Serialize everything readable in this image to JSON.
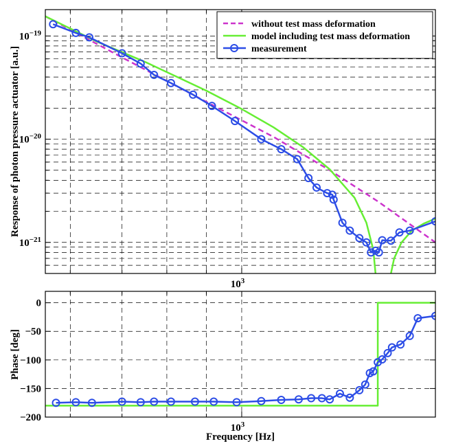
{
  "chart_data": [
    {
      "type": "line",
      "panel": "magnitude",
      "xscale": "log",
      "yscale": "log",
      "xlim": [
        557,
        1781
      ],
      "ylim": [
        5e-22,
        1.8e-19
      ],
      "ylabel": "Response of photon pressure actuator [a.u.]",
      "xlabel": "",
      "x_tick_labels": [
        {
          "value": 1000,
          "label": "10",
          "exp": "3"
        }
      ],
      "y_tick_labels": [
        {
          "value": 1e-19,
          "label": "10",
          "exp": "−19"
        },
        {
          "value": 1e-20,
          "label": "10",
          "exp": "−20"
        },
        {
          "value": 1e-21,
          "label": "10",
          "exp": "−21"
        }
      ],
      "grid": true,
      "legend": "top-right",
      "series": [
        {
          "name": "without test mass deformation",
          "color": "#cc33cc",
          "style": "dashed",
          "x": [
            557,
            700,
            900,
            1100,
            1300,
            1500,
            1781
          ],
          "y": [
            1.55e-19,
            6.2e-20,
            2.3e-20,
            1.05e-20,
            5e-21,
            2.5e-21,
            1e-21
          ]
        },
        {
          "name": "model including test mass deformation",
          "color": "#66ee33",
          "style": "solid",
          "x": [
            557,
            650,
            750,
            900,
            1000,
            1100,
            1200,
            1300,
            1400,
            1450,
            1480,
            1490
          ],
          "y": [
            1.55e-19,
            8.8e-20,
            5.6e-20,
            2.95e-20,
            1.96e-20,
            1.3e-20,
            8.4e-21,
            5.1e-21,
            2.7e-21,
            1.55e-21,
            8.5e-22,
            5e-22
          ]
        },
        {
          "name": "model including test mass deformation",
          "color": "#66ee33",
          "style": "solid",
          "x": [
            1560,
            1575,
            1610,
            1660,
            1720,
            1781
          ],
          "y": [
            5e-22,
            7e-22,
            1e-21,
            1.3e-21,
            1.52e-21,
            1.7e-21
          ]
        },
        {
          "name": "measurement",
          "color": "#2c4de6",
          "style": "solid-circles",
          "x": [
            570,
            610,
            635,
            700,
            740,
            770,
            810,
            865,
            915,
            980,
            1060,
            1125,
            1180,
            1220,
            1250,
            1290,
            1310,
            1315,
            1350,
            1380,
            1420,
            1450,
            1470,
            1490,
            1505,
            1520,
            1560,
            1600,
            1650,
            1781
          ],
          "y": [
            1.3e-19,
            1.07e-19,
            9.7e-20,
            6.8e-20,
            5.4e-20,
            4.2e-20,
            3.5e-20,
            2.7e-20,
            2.1e-20,
            1.5e-20,
            1e-20,
            8e-21,
            6.4e-21,
            4.2e-21,
            3.4e-21,
            3e-21,
            2.9e-21,
            2.6e-21,
            1.55e-21,
            1.3e-21,
            1.1e-21,
            1e-21,
            8e-22,
            8.3e-22,
            8e-22,
            1.05e-21,
            1.04e-21,
            1.25e-21,
            1.3e-21,
            1.6e-21
          ]
        }
      ]
    },
    {
      "type": "line",
      "panel": "phase",
      "xscale": "log",
      "xlim": [
        557,
        1781
      ],
      "ylim": [
        -200,
        20
      ],
      "xlabel": "Frequency [Hz]",
      "ylabel": "Phase [deg]",
      "x_tick_labels": [
        {
          "value": 1000,
          "label": "10",
          "exp": "3"
        }
      ],
      "yticks": [
        0,
        -50,
        -100,
        -150,
        -200
      ],
      "y_tick_labels": [
        "0",
        "−50",
        "−100",
        "−150",
        "−200"
      ],
      "grid": true,
      "series": [
        {
          "name": "model including test mass deformation",
          "color": "#66ee33",
          "style": "solid",
          "x": [
            557,
            1500,
            1500,
            1781
          ],
          "y": [
            -180,
            -180,
            0,
            0
          ]
        },
        {
          "name": "measurement",
          "color": "#2c4de6",
          "style": "solid-circles",
          "x": [
            575,
            610,
            640,
            700,
            740,
            770,
            810,
            870,
            920,
            985,
            1060,
            1125,
            1185,
            1230,
            1270,
            1300,
            1340,
            1380,
            1420,
            1445,
            1465,
            1480,
            1500,
            1520,
            1545,
            1565,
            1605,
            1650,
            1690,
            1781
          ],
          "y": [
            -175,
            -174,
            -175,
            -173,
            -174,
            -173,
            -173,
            -173,
            -173,
            -174,
            -172,
            -170,
            -169,
            -167,
            -167,
            -169,
            -159,
            -166,
            -153,
            -143,
            -123,
            -120,
            -104,
            -99,
            -88,
            -78,
            -73,
            -58,
            -27,
            -23
          ]
        }
      ]
    }
  ]
}
